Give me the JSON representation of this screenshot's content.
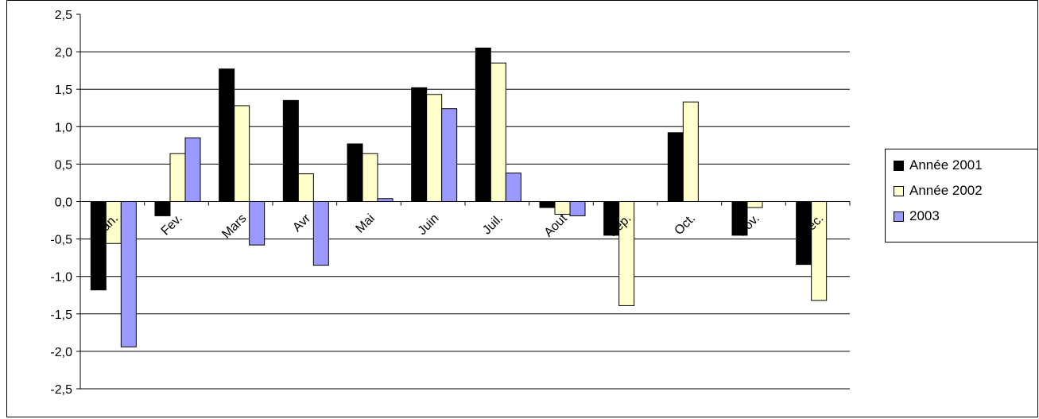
{
  "chart_data": {
    "type": "bar",
    "title": "",
    "xlabel": "",
    "ylabel": "",
    "ylim": [
      -2.5,
      2.5
    ],
    "yticks": [
      "2,5",
      "2,0",
      "1,5",
      "1,0",
      "0,5",
      "0,0",
      "-0,5",
      "-1,0",
      "-1,5",
      "-2,0",
      "-2,5"
    ],
    "grid": true,
    "legend_position": "right",
    "categories": [
      "Jan.",
      "Fev.",
      "Mars",
      "Avr",
      "Mai",
      "Juin",
      "Juil.",
      "Aout",
      "Sep.",
      "Oct.",
      "Nov.",
      "Dec."
    ],
    "series": [
      {
        "name": "Année 2001",
        "color": "#000000",
        "values": [
          -1.18,
          -0.19,
          1.77,
          1.35,
          0.77,
          1.52,
          2.05,
          -0.08,
          -0.45,
          0.92,
          -0.45,
          -0.84
        ]
      },
      {
        "name": "Année 2002",
        "color": "#ffffcc",
        "values": [
          -0.56,
          0.64,
          1.28,
          0.37,
          0.64,
          1.43,
          1.85,
          -0.17,
          -1.39,
          1.33,
          -0.08,
          -1.32
        ]
      },
      {
        "name": "2003",
        "color": "#9999ff",
        "values": [
          -1.94,
          0.85,
          -0.58,
          -0.85,
          0.04,
          1.24,
          0.38,
          -0.19,
          null,
          null,
          null,
          null
        ]
      }
    ]
  }
}
